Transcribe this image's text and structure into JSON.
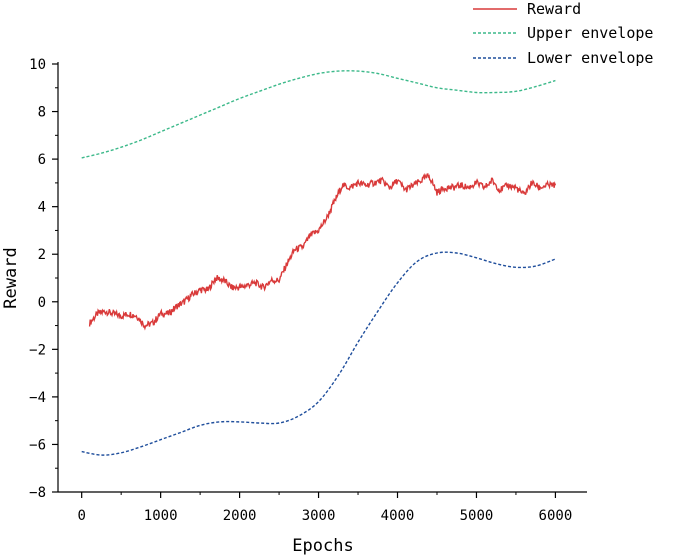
{
  "chart_data": {
    "type": "line",
    "title": "",
    "xlabel": "Epochs",
    "ylabel": "Reward",
    "xlim": [
      -300,
      6400
    ],
    "ylim": [
      -8,
      10
    ],
    "xticks": [
      0,
      1000,
      2000,
      3000,
      4000,
      5000,
      6000
    ],
    "yticks": [
      -8,
      -6,
      -4,
      -2,
      0,
      2,
      4,
      6,
      8,
      10
    ],
    "grid": false,
    "legend_position": "top-right",
    "colors": {
      "reward": "#d93a3a",
      "upper": "#3cb98a",
      "lower": "#1f4e9c",
      "axis": "#000000"
    },
    "series": [
      {
        "name": "Reward",
        "style": "solid",
        "x": [
          100,
          200,
          300,
          400,
          500,
          600,
          700,
          800,
          900,
          1000,
          1100,
          1200,
          1300,
          1400,
          1500,
          1600,
          1700,
          1800,
          1900,
          2000,
          2100,
          2200,
          2300,
          2400,
          2500,
          2600,
          2700,
          2800,
          2900,
          3000,
          3100,
          3200,
          3300,
          3400,
          3500,
          3600,
          3700,
          3800,
          3900,
          4000,
          4100,
          4200,
          4300,
          4400,
          4500,
          4600,
          4700,
          4800,
          4900,
          5000,
          5100,
          5200,
          5300,
          5400,
          5500,
          5600,
          5700,
          5800,
          5900,
          6000
        ],
        "y": [
          -0.9,
          -0.5,
          -0.4,
          -0.5,
          -0.6,
          -0.5,
          -0.6,
          -1.0,
          -0.9,
          -0.5,
          -0.5,
          -0.2,
          0.0,
          0.3,
          0.5,
          0.5,
          1.0,
          0.9,
          0.6,
          0.6,
          0.7,
          0.8,
          0.6,
          0.9,
          0.9,
          1.6,
          2.2,
          2.3,
          2.8,
          3.0,
          3.5,
          4.2,
          4.9,
          4.8,
          5.0,
          4.9,
          5.0,
          5.1,
          4.8,
          5.1,
          4.7,
          4.9,
          5.1,
          5.3,
          4.6,
          4.8,
          4.8,
          4.9,
          4.8,
          5.0,
          4.8,
          5.1,
          4.7,
          4.9,
          4.8,
          4.5,
          5.0,
          4.8,
          4.9,
          4.9
        ]
      },
      {
        "name": "Upper envelope",
        "style": "dashed",
        "x": [
          0,
          250,
          500,
          750,
          1000,
          1250,
          1500,
          1750,
          2000,
          2250,
          2500,
          2750,
          3000,
          3250,
          3500,
          3750,
          4000,
          4250,
          4500,
          4750,
          5000,
          5250,
          5500,
          5750,
          6000
        ],
        "y": [
          6.05,
          6.25,
          6.5,
          6.8,
          7.15,
          7.5,
          7.85,
          8.2,
          8.55,
          8.85,
          9.15,
          9.4,
          9.6,
          9.7,
          9.7,
          9.6,
          9.4,
          9.2,
          9.0,
          8.9,
          8.8,
          8.8,
          8.85,
          9.05,
          9.3
        ]
      },
      {
        "name": "Lower envelope",
        "style": "dashed",
        "x": [
          0,
          250,
          500,
          750,
          1000,
          1250,
          1500,
          1750,
          2000,
          2250,
          2500,
          2750,
          3000,
          3250,
          3500,
          3750,
          4000,
          4250,
          4500,
          4750,
          5000,
          5250,
          5500,
          5750,
          6000
        ],
        "y": [
          -6.3,
          -6.45,
          -6.35,
          -6.1,
          -5.8,
          -5.5,
          -5.2,
          -5.05,
          -5.05,
          -5.1,
          -5.1,
          -4.8,
          -4.2,
          -3.1,
          -1.7,
          -0.4,
          0.8,
          1.7,
          2.05,
          2.05,
          1.85,
          1.6,
          1.45,
          1.5,
          1.8
        ]
      }
    ]
  }
}
